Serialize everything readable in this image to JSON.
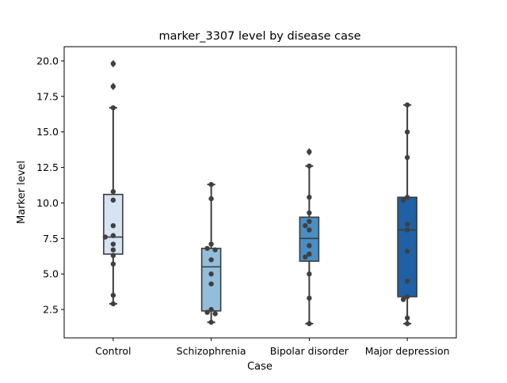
{
  "chart_data": {
    "type": "box",
    "title": "marker_3307 level by disease case",
    "xlabel": "Case",
    "ylabel": "Marker level",
    "categories": [
      "Control",
      "Schizophrenia",
      "Bipolar disorder",
      "Major depression"
    ],
    "ylim": [
      0.5,
      21.0
    ],
    "yticks": [
      2.5,
      5.0,
      7.5,
      10.0,
      12.5,
      15.0,
      17.5,
      20.0
    ],
    "ytick_labels": [
      "2.5",
      "5.0",
      "7.5",
      "10.0",
      "12.5",
      "15.0",
      "17.5",
      "20.0"
    ],
    "colors": [
      "#d5e3f3",
      "#92bedb",
      "#4a8fc4",
      "#2060a6"
    ],
    "boxes": [
      {
        "category": "Control",
        "whisker_low": 2.9,
        "q1": 6.4,
        "median": 7.6,
        "q3": 10.6,
        "whisker_high": 16.7,
        "outliers": [
          18.2,
          19.8
        ]
      },
      {
        "category": "Schizophrenia",
        "whisker_low": 1.6,
        "q1": 2.4,
        "median": 5.5,
        "q3": 6.8,
        "whisker_high": 11.3,
        "outliers": []
      },
      {
        "category": "Bipolar disorder",
        "whisker_low": 1.5,
        "q1": 5.9,
        "median": 7.5,
        "q3": 9.0,
        "whisker_high": 12.6,
        "outliers": [
          13.6
        ]
      },
      {
        "category": "Major depression",
        "whisker_low": 1.5,
        "q1": 3.4,
        "median": 8.1,
        "q3": 10.4,
        "whisker_high": 16.9,
        "outliers": []
      }
    ],
    "points": [
      {
        "category": "Control",
        "values": [
          19.8,
          18.2,
          16.7,
          10.8,
          10.2,
          8.4,
          7.7,
          7.6,
          7.1,
          6.7,
          6.3,
          5.7,
          3.5,
          2.9
        ]
      },
      {
        "category": "Schizophrenia",
        "values": [
          11.3,
          10.3,
          7.1,
          6.8,
          6.7,
          6.0,
          5.0,
          4.3,
          2.5,
          2.3,
          2.2,
          1.6
        ]
      },
      {
        "category": "Bipolar disorder",
        "values": [
          13.6,
          12.6,
          10.4,
          9.3,
          8.7,
          8.4,
          8.1,
          7.0,
          6.4,
          6.2,
          5.0,
          3.3,
          1.5
        ]
      },
      {
        "category": "Major depression",
        "values": [
          16.9,
          15.0,
          13.2,
          10.4,
          10.2,
          8.5,
          8.1,
          6.6,
          4.5,
          3.4,
          3.2,
          1.9,
          1.5
        ]
      }
    ]
  }
}
